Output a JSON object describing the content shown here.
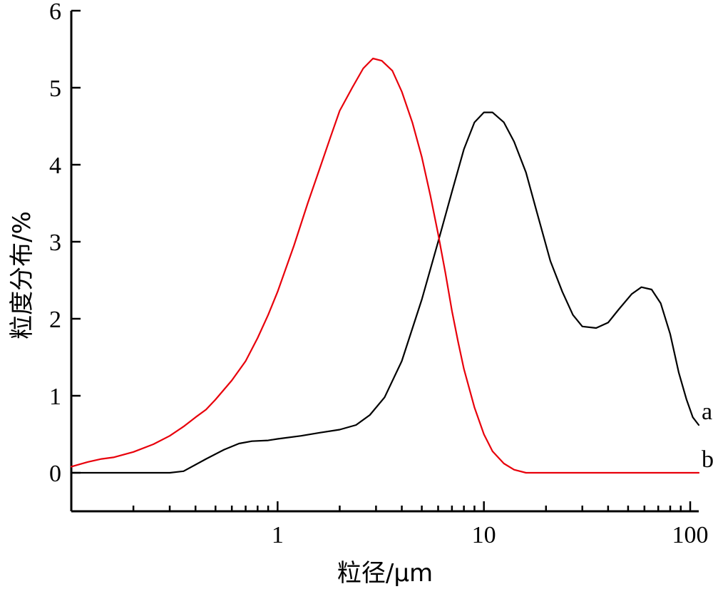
{
  "chart_data": {
    "type": "line",
    "xlabel": "粒径/μm",
    "ylabel": "粒度分布/%",
    "xscale": "log",
    "xlim": [
      0.1,
      110
    ],
    "ylim": [
      -0.5,
      6
    ],
    "x_ticks": [
      {
        "value": 1,
        "label": "1"
      },
      {
        "value": 10,
        "label": "10"
      },
      {
        "value": 100,
        "label": "100"
      }
    ],
    "y_ticks": [
      {
        "value": 0,
        "label": "0"
      },
      {
        "value": 1,
        "label": "1"
      },
      {
        "value": 2,
        "label": "2"
      },
      {
        "value": 3,
        "label": "3"
      },
      {
        "value": 4,
        "label": "4"
      },
      {
        "value": 5,
        "label": "5"
      },
      {
        "value": 6,
        "label": "6"
      }
    ],
    "grid": false,
    "legend": "none",
    "series": [
      {
        "name": "a",
        "color": "#000000",
        "points": [
          [
            0.1,
            0.0
          ],
          [
            0.2,
            0.0
          ],
          [
            0.3,
            0.0
          ],
          [
            0.35,
            0.02
          ],
          [
            0.45,
            0.18
          ],
          [
            0.55,
            0.3
          ],
          [
            0.65,
            0.38
          ],
          [
            0.75,
            0.41
          ],
          [
            0.9,
            0.42
          ],
          [
            1.0,
            0.44
          ],
          [
            1.3,
            0.48
          ],
          [
            1.6,
            0.52
          ],
          [
            2.0,
            0.56
          ],
          [
            2.4,
            0.62
          ],
          [
            2.8,
            0.75
          ],
          [
            3.3,
            0.98
          ],
          [
            4.0,
            1.45
          ],
          [
            5.0,
            2.25
          ],
          [
            6.0,
            3.0
          ],
          [
            7.0,
            3.65
          ],
          [
            8.0,
            4.2
          ],
          [
            9.0,
            4.55
          ],
          [
            10.0,
            4.68
          ],
          [
            11.0,
            4.68
          ],
          [
            12.5,
            4.55
          ],
          [
            14.0,
            4.3
          ],
          [
            16.0,
            3.9
          ],
          [
            18.0,
            3.4
          ],
          [
            21.0,
            2.75
          ],
          [
            24.0,
            2.35
          ],
          [
            27.0,
            2.05
          ],
          [
            30.0,
            1.9
          ],
          [
            35.0,
            1.88
          ],
          [
            40.0,
            1.95
          ],
          [
            45.0,
            2.12
          ],
          [
            52.0,
            2.32
          ],
          [
            58.0,
            2.41
          ],
          [
            65.0,
            2.38
          ],
          [
            72.0,
            2.2
          ],
          [
            80.0,
            1.8
          ],
          [
            88.0,
            1.3
          ],
          [
            96.0,
            0.95
          ],
          [
            103.0,
            0.72
          ],
          [
            110.0,
            0.62
          ]
        ]
      },
      {
        "name": "b",
        "color": "#e8000b",
        "points": [
          [
            0.1,
            0.08
          ],
          [
            0.12,
            0.14
          ],
          [
            0.14,
            0.18
          ],
          [
            0.16,
            0.2
          ],
          [
            0.2,
            0.27
          ],
          [
            0.25,
            0.37
          ],
          [
            0.3,
            0.48
          ],
          [
            0.35,
            0.6
          ],
          [
            0.4,
            0.72
          ],
          [
            0.45,
            0.82
          ],
          [
            0.5,
            0.95
          ],
          [
            0.6,
            1.2
          ],
          [
            0.7,
            1.45
          ],
          [
            0.8,
            1.75
          ],
          [
            0.9,
            2.05
          ],
          [
            1.0,
            2.35
          ],
          [
            1.2,
            2.95
          ],
          [
            1.4,
            3.5
          ],
          [
            1.6,
            3.95
          ],
          [
            1.8,
            4.35
          ],
          [
            2.0,
            4.7
          ],
          [
            2.3,
            5.0
          ],
          [
            2.6,
            5.25
          ],
          [
            2.9,
            5.38
          ],
          [
            3.2,
            5.35
          ],
          [
            3.6,
            5.22
          ],
          [
            4.0,
            4.95
          ],
          [
            4.5,
            4.55
          ],
          [
            5.0,
            4.1
          ],
          [
            5.5,
            3.6
          ],
          [
            6.0,
            3.1
          ],
          [
            6.5,
            2.6
          ],
          [
            7.0,
            2.1
          ],
          [
            7.5,
            1.7
          ],
          [
            8.0,
            1.35
          ],
          [
            9.0,
            0.85
          ],
          [
            10.0,
            0.5
          ],
          [
            11.0,
            0.28
          ],
          [
            12.5,
            0.12
          ],
          [
            14.0,
            0.04
          ],
          [
            16.0,
            0.0
          ],
          [
            20.0,
            0.0
          ],
          [
            50.0,
            0.0
          ],
          [
            110.0,
            0.0
          ]
        ]
      }
    ]
  }
}
